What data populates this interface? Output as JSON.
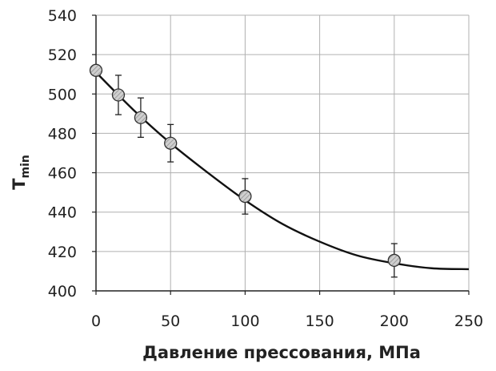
{
  "chart_data": {
    "type": "scatter",
    "xlabel": "Давление прессования, МПа",
    "ylabel": "T",
    "ylabel_subscript": "min",
    "xlim": [
      0,
      250
    ],
    "ylim": [
      400,
      540
    ],
    "x_ticks": [
      0,
      50,
      100,
      150,
      200,
      250
    ],
    "y_ticks": [
      400,
      420,
      440,
      460,
      480,
      500,
      520,
      540
    ],
    "grid": true,
    "legend": "none",
    "series": [
      {
        "points": [
          {
            "x": 0,
            "y": 512,
            "err": 0
          },
          {
            "x": 15,
            "y": 499.5,
            "err": 10
          },
          {
            "x": 30,
            "y": 488,
            "err": 10
          },
          {
            "x": 50,
            "y": 475,
            "err": 9.5
          },
          {
            "x": 100,
            "y": 448,
            "err": 9
          },
          {
            "x": 200,
            "y": 415.5,
            "err": 8.5
          }
        ]
      }
    ],
    "trendline": {
      "kind": "polynomial",
      "points": [
        [
          0,
          511
        ],
        [
          25,
          492
        ],
        [
          50,
          475
        ],
        [
          75,
          460
        ],
        [
          100,
          446
        ],
        [
          125,
          434
        ],
        [
          150,
          425
        ],
        [
          175,
          418
        ],
        [
          200,
          414
        ],
        [
          225,
          411.5
        ],
        [
          250,
          411
        ]
      ]
    },
    "colors": {
      "marker_fill": "#c8c8c8",
      "marker_stroke": "#333333",
      "line": "#111111",
      "grid": "#b0b0b0",
      "axis": "#222222"
    }
  }
}
